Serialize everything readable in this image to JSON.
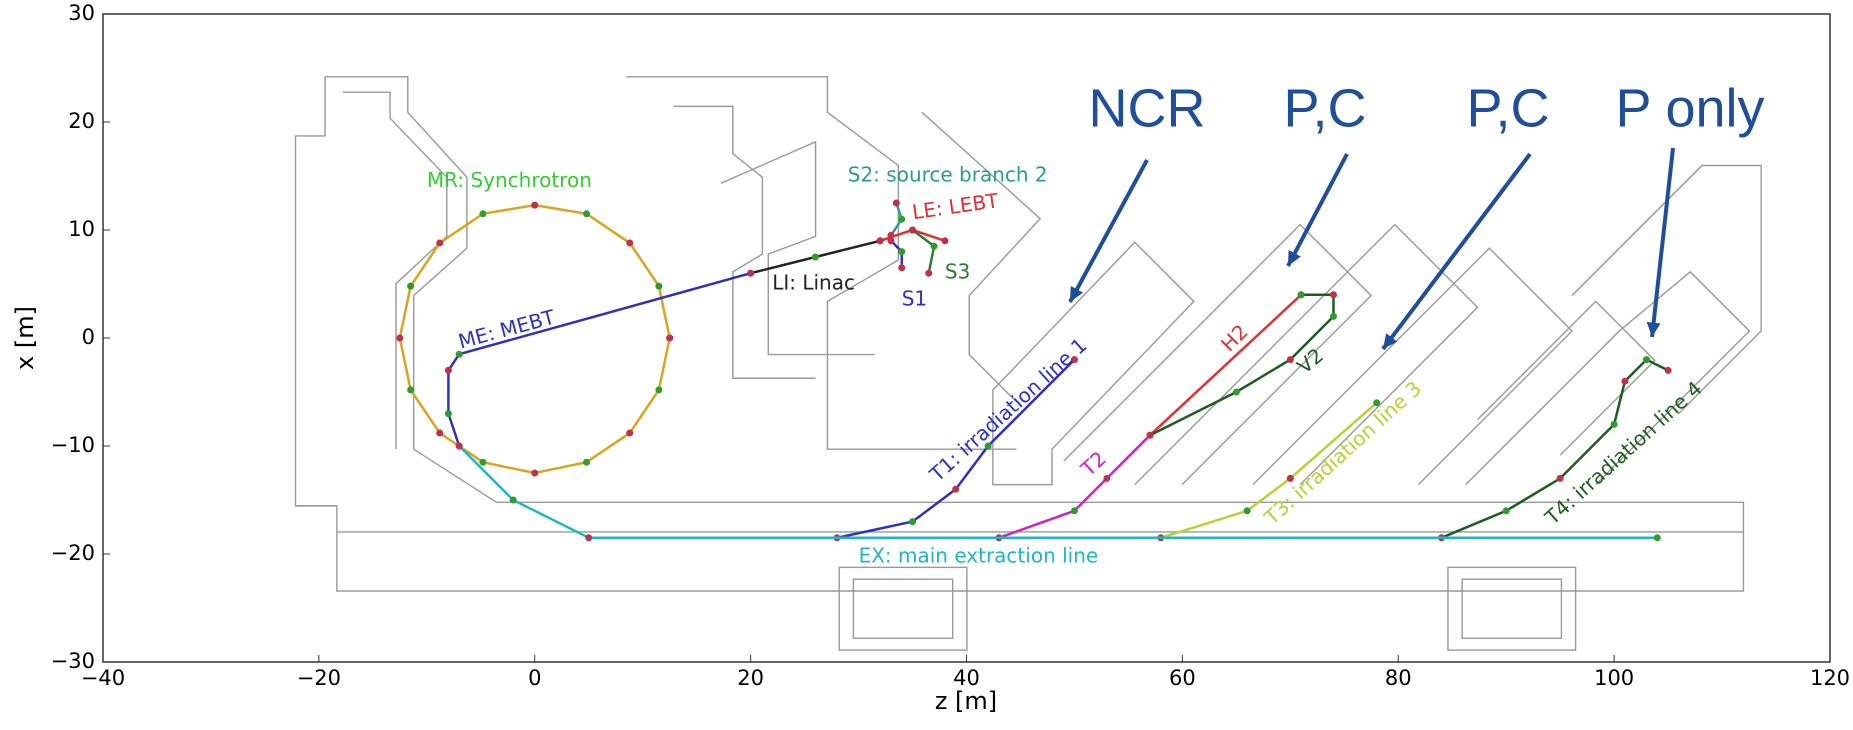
{
  "chart_data": {
    "type": "line",
    "xlabel": "z [m]",
    "ylabel": "x [m]",
    "xlim": [
      -40,
      120
    ],
    "ylim": [
      -30,
      30
    ],
    "xticks": [
      {
        "value": -40,
        "label": "−40"
      },
      {
        "value": -20,
        "label": "−20"
      },
      0,
      20,
      40,
      60,
      80,
      100,
      120
    ],
    "yticks": [
      {
        "value": -30,
        "label": "−30"
      },
      {
        "value": -20,
        "label": "−20"
      },
      {
        "value": -10,
        "label": "−10"
      },
      0,
      10,
      20,
      30
    ],
    "series": [
      {
        "name": "MR: Synchrotron",
        "color": "#d9a520",
        "x": [
          12.5,
          11.5,
          8.8,
          4.8,
          0,
          -4.8,
          -8.8,
          -11.5,
          -12.5,
          -11.5,
          -8.8,
          -4.8,
          0,
          4.8,
          8.8,
          11.5,
          12.5
        ],
        "values": [
          0,
          4.8,
          8.8,
          11.5,
          12.3,
          11.5,
          8.8,
          4.8,
          0,
          -4.8,
          -8.8,
          -11.5,
          -12.5,
          -11.5,
          -8.8,
          -4.8,
          0
        ]
      },
      {
        "name": "S2: source branch 2",
        "color": "#2a9d8f",
        "x": [
          33,
          34,
          33.5
        ],
        "values": [
          9.5,
          11,
          12.5
        ]
      },
      {
        "name": "LE: LEBT",
        "color": "#e03030",
        "x": [
          32,
          35,
          38
        ],
        "values": [
          9,
          10,
          9
        ]
      },
      {
        "name": "LI: Linac",
        "color": "#222222",
        "x": [
          20,
          26,
          32
        ],
        "values": [
          6,
          7.5,
          9
        ]
      },
      {
        "name": "S1",
        "color": "#3030c0",
        "x": [
          33,
          34,
          34
        ],
        "values": [
          9,
          8,
          6.5
        ]
      },
      {
        "name": "S3",
        "color": "#2e7d32",
        "x": [
          35,
          37,
          36.5
        ],
        "values": [
          10,
          8.5,
          6
        ]
      },
      {
        "name": "ME: MEBT",
        "color": "#3030c0",
        "x": [
          20,
          -7,
          -8,
          -8,
          -7
        ],
        "values": [
          6,
          -1.5,
          -3,
          -7,
          -10
        ]
      },
      {
        "name": "T1: irradiation line 1",
        "color": "#3030c0",
        "x": [
          28,
          35,
          39,
          42,
          50
        ],
        "values": [
          -18.5,
          -17,
          -14,
          -10,
          -2
        ]
      },
      {
        "name": "T2",
        "color": "#d020c0",
        "x": [
          43,
          50,
          53,
          57
        ],
        "values": [
          -18.5,
          -16,
          -13,
          -9
        ]
      },
      {
        "name": "H2",
        "color": "#e03030",
        "x": [
          57,
          71
        ],
        "values": [
          -9,
          4
        ]
      },
      {
        "name": "V2",
        "color": "#1b5e20",
        "x": [
          57,
          65,
          70,
          74,
          74,
          71
        ],
        "values": [
          -9,
          -5,
          -2,
          2,
          4,
          4
        ]
      },
      {
        "name": "T3: irradiation line 3",
        "color": "#b5d334",
        "x": [
          58,
          66,
          70,
          78
        ],
        "values": [
          -18.5,
          -16,
          -13,
          -6
        ]
      },
      {
        "name": "T4: irradiation line 4",
        "color": "#1b5e20",
        "x": [
          84,
          90,
          95,
          100,
          101,
          103,
          105
        ],
        "values": [
          -18.5,
          -16,
          -13,
          -8,
          -4,
          -2,
          -3
        ]
      },
      {
        "name": "EX: main extraction line",
        "color": "#22b5c5",
        "x": [
          -7,
          -2,
          5,
          104
        ],
        "values": [
          -10,
          -15,
          -18.5,
          -18.5
        ]
      }
    ],
    "annotations": [
      "NCR",
      "P,C",
      "P,C",
      "P only"
    ]
  }
}
